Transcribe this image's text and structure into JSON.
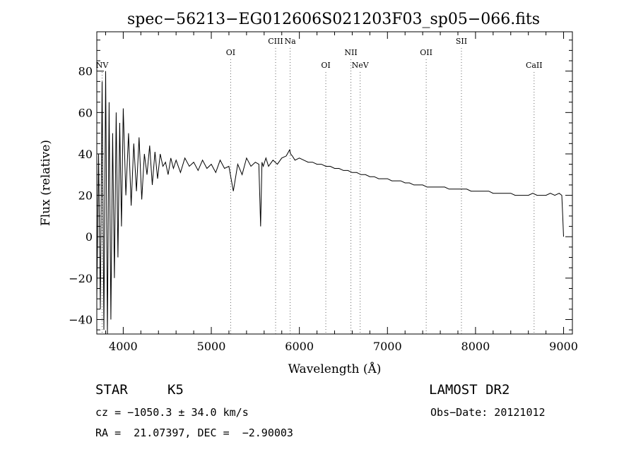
{
  "chart_data": {
    "type": "line",
    "title": "spec−56213−EG012606S021203F03_sp05−066.fits",
    "xlabel": "Wavelength (Å)",
    "ylabel": "Flux (relative)",
    "xlim": [
      3700,
      9100
    ],
    "ylim": [
      -47,
      99
    ],
    "x_ticks": [
      4000,
      5000,
      6000,
      7000,
      8000,
      9000
    ],
    "y_ticks": [
      -40,
      -20,
      0,
      20,
      40,
      60,
      80
    ],
    "y_tick_labels": [
      "−40",
      "−20",
      "0",
      "20",
      "40",
      "60",
      "80"
    ],
    "grid": false,
    "spectral_lines": [
      {
        "label": "NV",
        "wavelength": 3760,
        "level": "low"
      },
      {
        "label": "OI",
        "wavelength": 5220,
        "level": "mid"
      },
      {
        "label": "CIII",
        "wavelength": 5730,
        "level": "high"
      },
      {
        "label": "Na",
        "wavelength": 5895,
        "level": "high"
      },
      {
        "label": "OI",
        "wavelength": 6300,
        "level": "low"
      },
      {
        "label": "NII",
        "wavelength": 6585,
        "level": "mid"
      },
      {
        "label": "NeV",
        "wavelength": 6690,
        "level": "low"
      },
      {
        "label": "OII",
        "wavelength": 7440,
        "level": "mid"
      },
      {
        "label": "SII",
        "wavelength": 7840,
        "level": "high"
      },
      {
        "label": "CaII",
        "wavelength": 8665,
        "level": "low"
      }
    ],
    "series": [
      {
        "x": [
          3700,
          3720,
          3740,
          3760,
          3780,
          3800,
          3820,
          3840,
          3860,
          3880,
          3900,
          3920,
          3940,
          3960,
          3980,
          4000,
          4030,
          4060,
          4090,
          4120,
          4150,
          4180,
          4210,
          4240,
          4270,
          4300,
          4330,
          4360,
          4390,
          4420,
          4450,
          4480,
          4510,
          4540,
          4570,
          4600,
          4650,
          4700,
          4750,
          4800,
          4850,
          4900,
          4950,
          5000,
          5050,
          5100,
          5150,
          5200,
          5250,
          5300,
          5350,
          5400,
          5450,
          5500,
          5540,
          5560,
          5575,
          5590,
          5620,
          5650,
          5700,
          5750,
          5800,
          5850,
          5890,
          5900,
          5920,
          5950,
          6000,
          6050,
          6100,
          6150,
          6200,
          6250,
          6300,
          6350,
          6400,
          6450,
          6500,
          6550,
          6600,
          6650,
          6700,
          6750,
          6800,
          6850,
          6900,
          6950,
          7000,
          7050,
          7100,
          7150,
          7200,
          7250,
          7300,
          7350,
          7400,
          7450,
          7500,
          7550,
          7600,
          7650,
          7700,
          7750,
          7800,
          7850,
          7900,
          7950,
          8000,
          8050,
          8100,
          8150,
          8200,
          8250,
          8300,
          8350,
          8400,
          8450,
          8500,
          8550,
          8600,
          8650,
          8700,
          8750,
          8800,
          8850,
          8900,
          8950,
          8980,
          8990,
          9000
        ],
        "y": [
          -30,
          40,
          -35,
          75,
          -45,
          80,
          -47,
          65,
          -40,
          50,
          -20,
          60,
          -10,
          55,
          5,
          62,
          20,
          50,
          15,
          45,
          22,
          48,
          18,
          40,
          30,
          44,
          25,
          41,
          28,
          40,
          34,
          36,
          30,
          38,
          33,
          37,
          31,
          38,
          34,
          36,
          32,
          37,
          33,
          35,
          31,
          37,
          33,
          34,
          22,
          35,
          30,
          38,
          34,
          36,
          35,
          5,
          36,
          34,
          38,
          34,
          37,
          35,
          38,
          39,
          42,
          40,
          39,
          37,
          38,
          37,
          36,
          36,
          35,
          35,
          34,
          34,
          33,
          33,
          32,
          32,
          31,
          31,
          30,
          30,
          29,
          29,
          28,
          28,
          28,
          27,
          27,
          27,
          26,
          26,
          25,
          25,
          25,
          24,
          24,
          24,
          24,
          24,
          23,
          23,
          23,
          23,
          23,
          22,
          22,
          22,
          22,
          22,
          21,
          21,
          21,
          21,
          21,
          20,
          20,
          20,
          20,
          21,
          20,
          20,
          20,
          21,
          20,
          21,
          20,
          10,
          0
        ]
      }
    ]
  },
  "info": {
    "object_type": "STAR",
    "subclass": "K5",
    "survey": "LAMOST DR2",
    "cz_line": "cz = −1050.3 ± 34.0 km/s",
    "obs_date_line": "Obs−Date: 20121012",
    "radec_line": "RA =  21.07397, DEC =  −2.90003"
  }
}
